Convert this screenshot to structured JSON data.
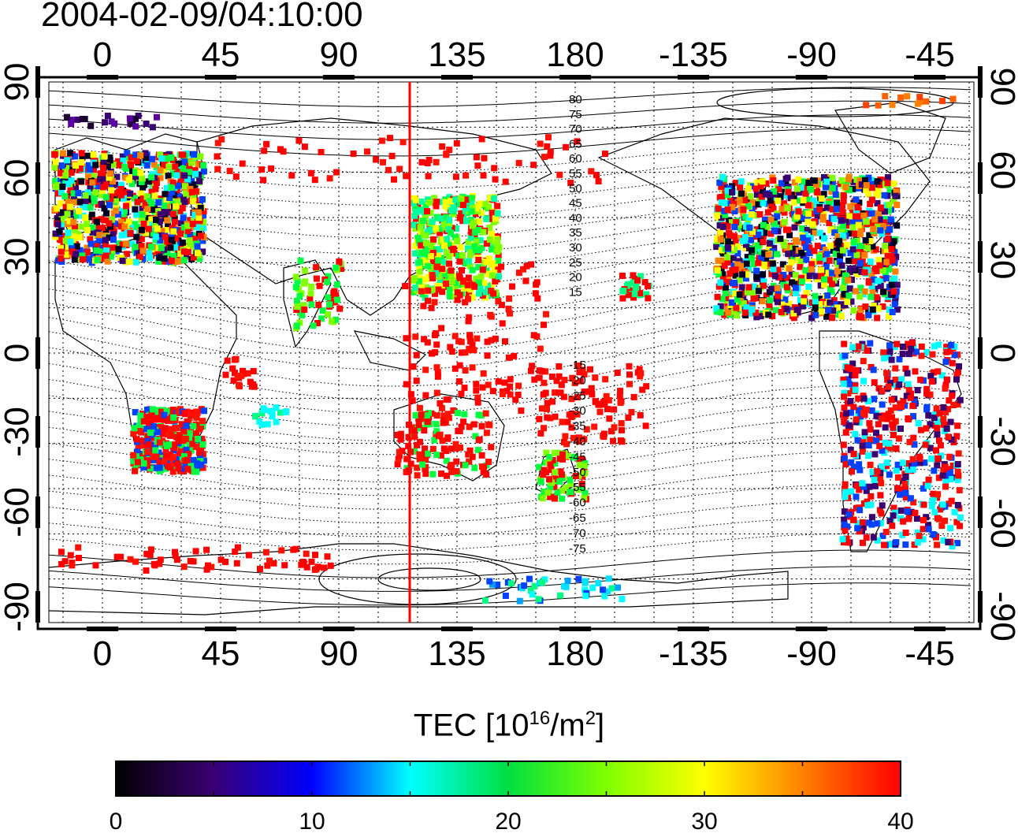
{
  "title": "2004-02-09/04:10:00",
  "map": {
    "lon_ticks": [
      "0",
      "45",
      "90",
      "135",
      "180",
      "-135",
      "-90",
      "-45"
    ],
    "lat_ticks": [
      "90",
      "60",
      "30",
      "0",
      "-30",
      "-60",
      "-90"
    ],
    "terminator_label": "",
    "magnetic_lat_labels_north": [
      "80",
      "75",
      "70",
      "65",
      "60",
      "55",
      "50",
      "45",
      "40",
      "35",
      "30",
      "25",
      "20",
      "15"
    ],
    "magnetic_lat_labels_south": [
      "-15",
      "-20",
      "-25",
      "-30",
      "-35",
      "-40",
      "-45",
      "-50",
      "-55",
      "-60",
      "-65",
      "-70",
      "-75"
    ]
  },
  "colorbar": {
    "label_main": "TEC  [10",
    "label_exp": "16",
    "label_unit": "/m",
    "label_exp2": "2",
    "label_end": "]",
    "ticks": [
      "0",
      "10",
      "20",
      "30",
      "40"
    ],
    "min": 0,
    "max": 40
  },
  "colors": {
    "meridian_line": "#ff0000",
    "scale": [
      "#000000",
      "#3a0070",
      "#0000ff",
      "#00ffff",
      "#00ff00",
      "#ffff00",
      "#ff8000",
      "#ff0000"
    ]
  }
}
